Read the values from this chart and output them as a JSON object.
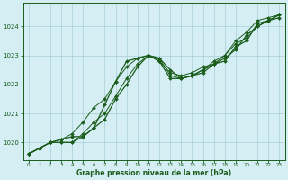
{
  "title": "Graphe pression niveau de la mer (hPa)",
  "background_color": "#d4eef4",
  "plot_bg_color": "#d4eef4",
  "line_color": "#1a5c1a",
  "grid_color": "#a8cdd8",
  "xlim": [
    -0.5,
    23.5
  ],
  "ylim": [
    1019.4,
    1024.8
  ],
  "yticks": [
    1020,
    1021,
    1022,
    1023,
    1024
  ],
  "xticks": [
    0,
    1,
    2,
    3,
    4,
    5,
    6,
    7,
    8,
    9,
    10,
    11,
    12,
    13,
    14,
    15,
    16,
    17,
    18,
    19,
    20,
    21,
    22,
    23
  ],
  "series": [
    [
      1019.6,
      1019.8,
      1020.0,
      1020.1,
      1020.2,
      1020.2,
      1020.5,
      1021.3,
      1022.1,
      1022.8,
      1022.9,
      1023.0,
      1022.9,
      1022.5,
      1022.2,
      1022.3,
      1022.5,
      1022.7,
      1022.8,
      1023.3,
      1023.5,
      1024.1,
      1024.2,
      1024.3
    ],
    [
      1019.6,
      1019.8,
      1020.0,
      1020.0,
      1020.0,
      1020.2,
      1020.5,
      1020.8,
      1021.5,
      1022.0,
      1022.6,
      1023.0,
      1022.8,
      1022.2,
      1022.2,
      1022.3,
      1022.4,
      1022.7,
      1022.9,
      1023.2,
      1023.7,
      1024.0,
      1024.2,
      1024.4
    ],
    [
      1019.6,
      1019.8,
      1020.0,
      1020.1,
      1020.3,
      1020.7,
      1021.2,
      1021.5,
      1022.1,
      1022.6,
      1022.9,
      1023.0,
      1022.8,
      1022.4,
      1022.3,
      1022.4,
      1022.6,
      1022.7,
      1023.0,
      1023.5,
      1023.8,
      1024.2,
      1024.3,
      1024.4
    ],
    [
      1019.6,
      1019.8,
      1020.0,
      1020.0,
      1020.0,
      1020.3,
      1020.7,
      1021.0,
      1021.6,
      1022.2,
      1022.7,
      1023.0,
      1022.9,
      1022.3,
      1022.2,
      1022.3,
      1022.5,
      1022.8,
      1023.0,
      1023.4,
      1023.6,
      1024.0,
      1024.2,
      1024.4
    ]
  ]
}
